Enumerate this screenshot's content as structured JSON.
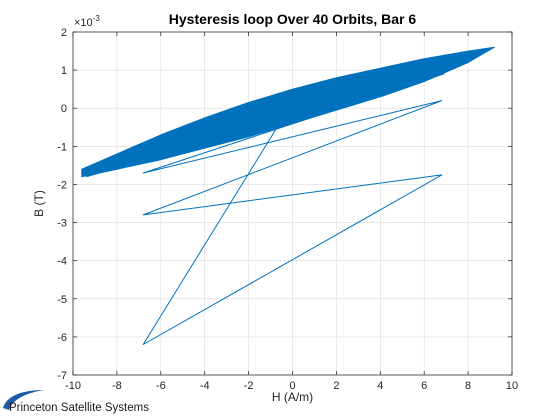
{
  "chart_data": {
    "type": "line",
    "title": "Hysteresis loop Over 40 Orbits, Bar 6",
    "xlabel": "H (A/m)",
    "ylabel": "B (T)",
    "exponent_label": "×10",
    "exponent_power": "-3",
    "xlim": [
      -10,
      10
    ],
    "ylim": [
      -7,
      2
    ],
    "xticks": [
      "-10",
      "-8",
      "-6",
      "-4",
      "-2",
      "0",
      "2",
      "4",
      "6",
      "8",
      "10"
    ],
    "yticks": [
      "-7",
      "-6",
      "-5",
      "-4",
      "-3",
      "-2",
      "-1",
      "0",
      "1",
      "2"
    ],
    "grid": true,
    "series_color": "#0072BD",
    "initial_path": {
      "x": [
        -0.7,
        -6.8,
        6.8,
        -6.8,
        6.8,
        -6.8,
        6.9,
        -9.4
      ],
      "y": [
        -0.5,
        -6.2,
        -1.75,
        -2.8,
        0.2,
        -1.7,
        0.9,
        -1.8
      ]
    },
    "loop_band": {
      "upper": {
        "x": [
          -9.6,
          -8,
          -6,
          -4,
          -2,
          0,
          2,
          4,
          6,
          8,
          9.2
        ],
        "y": [
          -1.6,
          -1.2,
          -0.7,
          -0.25,
          0.15,
          0.5,
          0.8,
          1.05,
          1.3,
          1.5,
          1.6
        ]
      },
      "lower": {
        "x": [
          9.2,
          8,
          6,
          4,
          2,
          0,
          -2,
          -4,
          -6,
          -8,
          -9.6
        ],
        "y": [
          1.6,
          1.2,
          0.7,
          0.3,
          -0.05,
          -0.4,
          -0.75,
          -1.05,
          -1.35,
          -1.6,
          -1.8
        ]
      }
    }
  },
  "logo": {
    "text": "Princeton Satellite Systems",
    "color": "#1c5ba8"
  }
}
